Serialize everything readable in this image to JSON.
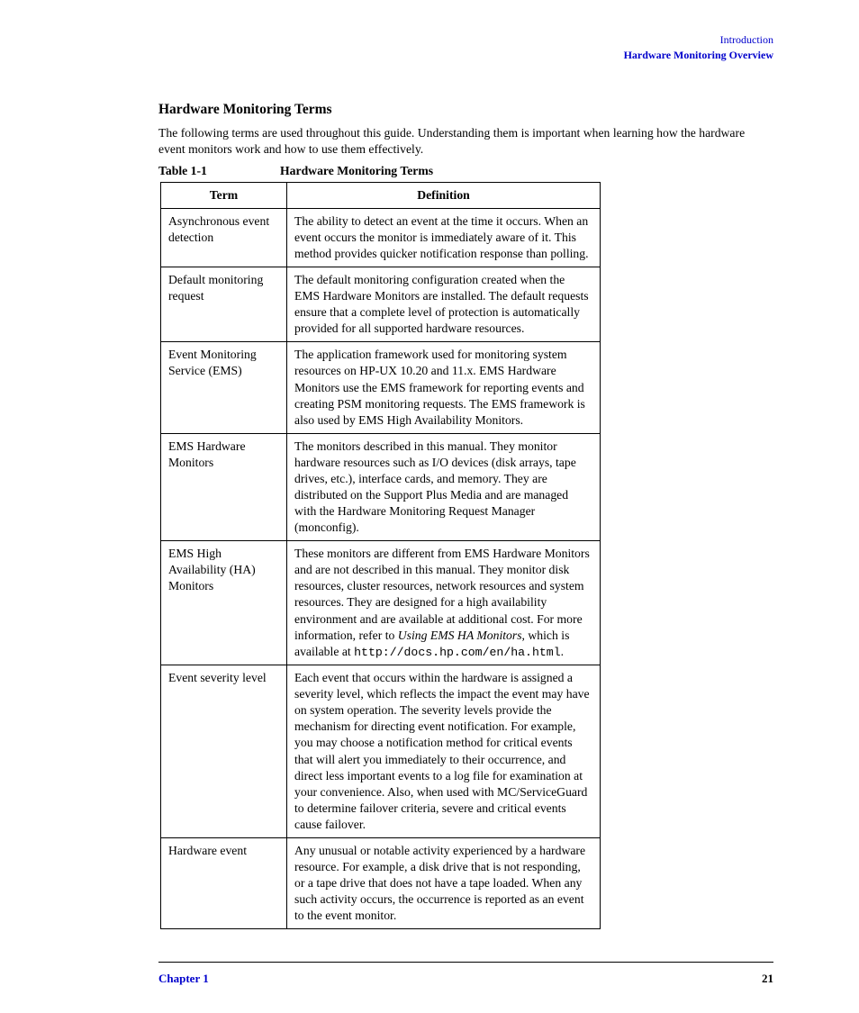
{
  "header": {
    "line1": "Introduction",
    "line2": "Hardware Monitoring Overview"
  },
  "section": {
    "heading": "Hardware Monitoring Terms",
    "intro": "The following terms are used throughout this guide. Understanding them is important when learning how the hardware event monitors work and how to use them effectively."
  },
  "table": {
    "caption_number": "Table 1-1",
    "caption_text": "Hardware Monitoring Terms",
    "columns": [
      "Term",
      "Definition"
    ],
    "rows": [
      {
        "term": "Asynchronous event detection",
        "def_parts": [
          {
            "t": "The ability to detect an event at the time it occurs. When an event occurs the monitor is immediately aware of it. This method provides quicker notification response than polling."
          }
        ]
      },
      {
        "term": "Default monitoring request",
        "def_parts": [
          {
            "t": "The default monitoring configuration created when the EMS Hardware Monitors are installed. The default requests ensure that a complete level of protection is automatically provided for all supported hardware resources."
          }
        ]
      },
      {
        "term": "Event Monitoring Service (EMS)",
        "def_parts": [
          {
            "t": "The application framework used for monitoring system resources on HP-UX 10.20 and 11.x. EMS Hardware Monitors use the EMS framework for reporting events and creating PSM monitoring requests. The EMS framework is also used by EMS High Availability Monitors."
          }
        ]
      },
      {
        "term": "EMS Hardware Monitors",
        "def_parts": [
          {
            "t": "The monitors described in this manual. They monitor hardware resources such as I/O devices (disk arrays, tape drives, etc.), interface cards, and memory. They are distributed on the Support Plus Media and are managed with the Hardware Monitoring Request Manager (monconfig)."
          }
        ]
      },
      {
        "term": "EMS High Availability (HA) Monitors",
        "def_parts": [
          {
            "t": "These monitors are different from EMS Hardware Monitors and are not described in this manual. They monitor disk resources, cluster resources, network resources and system resources. They are designed for a high availability environment and are available at additional cost. For more information, refer to "
          },
          {
            "t": "Using EMS HA Monitors",
            "italic": true
          },
          {
            "t": ", which is available at "
          },
          {
            "t": "http://docs.hp.com/en/ha.html",
            "mono": true
          },
          {
            "t": "."
          }
        ]
      },
      {
        "term": "Event severity level",
        "def_parts": [
          {
            "t": "Each event that occurs within the hardware is assigned a severity level, which reflects the impact the event may have on system operation. The severity levels provide the mechanism for directing event notification. For example, you may choose a notification method for critical events that will alert you immediately to their occurrence, and direct less important events to a log file for examination at your convenience. Also, when used with MC/ServiceGuard to determine failover criteria, severe and critical events cause failover."
          }
        ]
      },
      {
        "term": "Hardware event",
        "def_parts": [
          {
            "t": "Any unusual or notable activity experienced by a hardware resource. For example, a disk drive that is not responding, or a tape drive that does not have a tape loaded. When any such activity occurs, the occurrence is reported as an event to the event monitor."
          }
        ]
      }
    ]
  },
  "footer": {
    "chapter": "Chapter 1",
    "page": "21"
  },
  "colors": {
    "link": "#0000cc",
    "text": "#000000",
    "border": "#000000"
  }
}
